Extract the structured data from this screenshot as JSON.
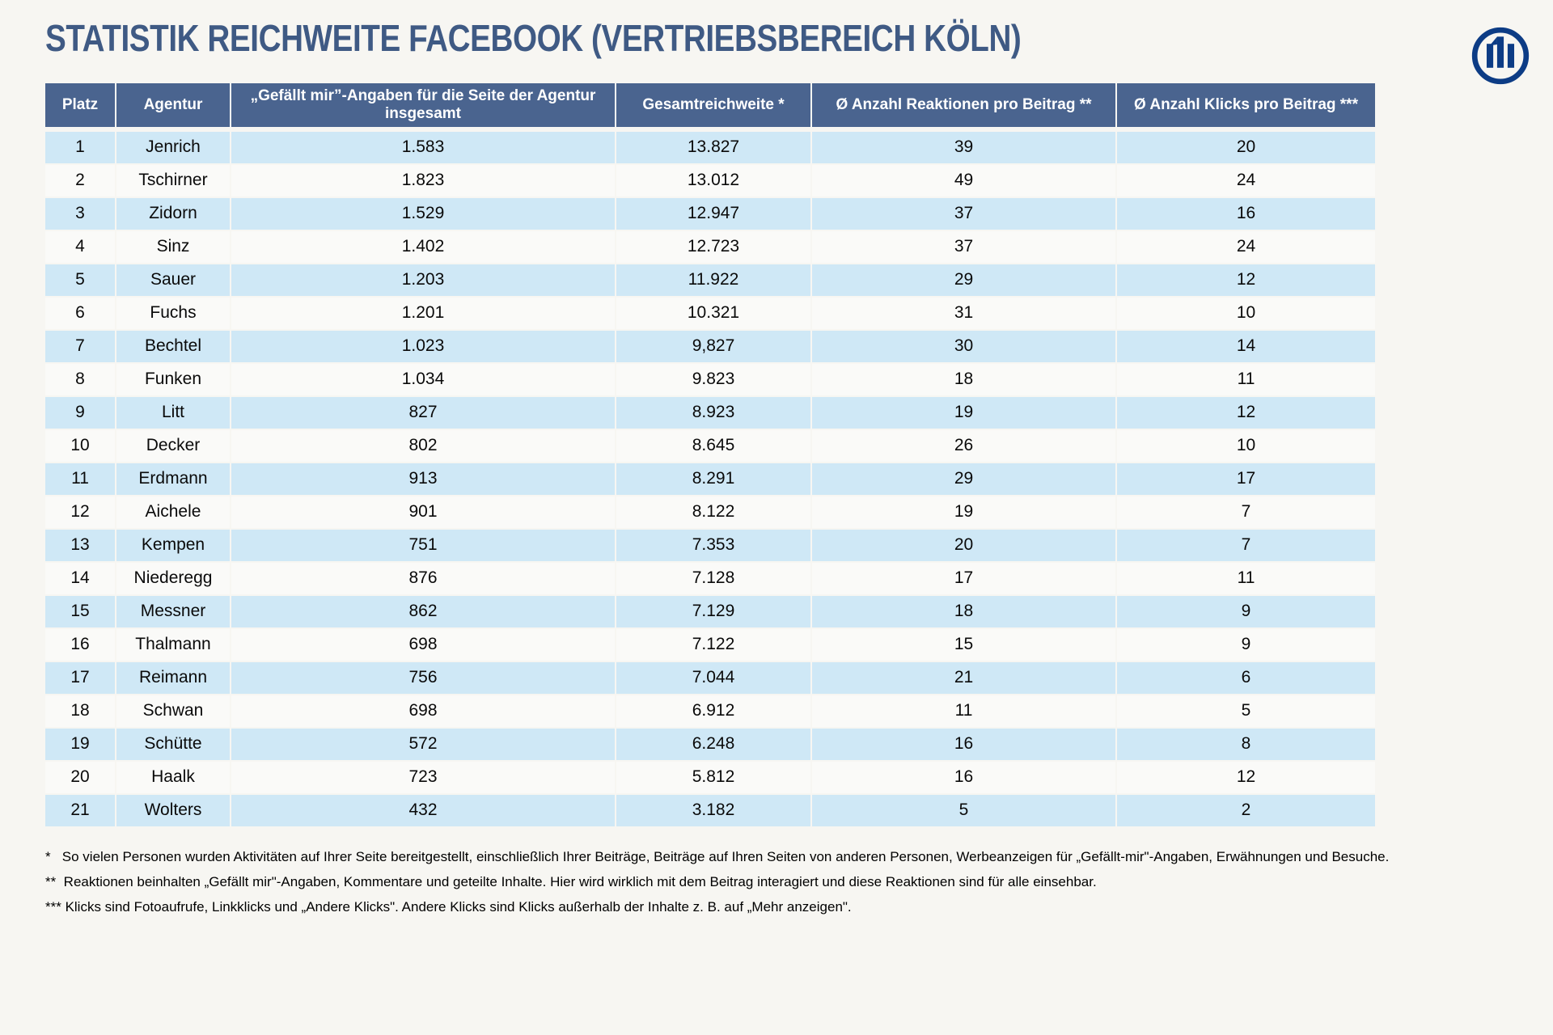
{
  "header": {
    "title": "STATISTIK REICHWEITE FACEBOOK (VERTRIEBSBEREICH KÖLN)",
    "logo": "Allianz"
  },
  "colors": {
    "page_bg": "#f7f6f2",
    "title": "#3f5a84",
    "header_bg": "#4a648f",
    "row_alt": "#cfe8f6",
    "row_base": "#fafaf8",
    "logo_blue": "#0d3c85"
  },
  "table": {
    "columns": [
      {
        "label": "Platz"
      },
      {
        "label": "Agentur"
      },
      {
        "label": "„Gefällt mir”-Angaben für die Seite der Agentur insgesamt"
      },
      {
        "label": "Gesamtreichweite *"
      },
      {
        "label": "Ø Anzahl Reaktionen pro Beitrag **"
      },
      {
        "label": "Ø Anzahl Klicks pro Beitrag ***"
      }
    ],
    "rows": [
      [
        "1",
        "Jenrich",
        "1.583",
        "13.827",
        "39",
        "20"
      ],
      [
        "2",
        "Tschirner",
        "1.823",
        "13.012",
        "49",
        "24"
      ],
      [
        "3",
        "Zidorn",
        "1.529",
        "12.947",
        "37",
        "16"
      ],
      [
        "4",
        "Sinz",
        "1.402",
        "12.723",
        "37",
        "24"
      ],
      [
        "5",
        "Sauer",
        "1.203",
        "11.922",
        "29",
        "12"
      ],
      [
        "6",
        "Fuchs",
        "1.201",
        "10.321",
        "31",
        "10"
      ],
      [
        "7",
        "Bechtel",
        "1.023",
        "9,827",
        "30",
        "14"
      ],
      [
        "8",
        "Funken",
        "1.034",
        "9.823",
        "18",
        "11"
      ],
      [
        "9",
        "Litt",
        "827",
        "8.923",
        "19",
        "12"
      ],
      [
        "10",
        "Decker",
        "802",
        "8.645",
        "26",
        "10"
      ],
      [
        "11",
        "Erdmann",
        "913",
        "8.291",
        "29",
        "17"
      ],
      [
        "12",
        "Aichele",
        "901",
        "8.122",
        "19",
        "7"
      ],
      [
        "13",
        "Kempen",
        "751",
        "7.353",
        "20",
        "7"
      ],
      [
        "14",
        "Niederegg",
        "876",
        "7.128",
        "17",
        "11"
      ],
      [
        "15",
        "Messner",
        "862",
        "7.129",
        "18",
        "9"
      ],
      [
        "16",
        "Thalmann",
        "698",
        "7.122",
        "15",
        "9"
      ],
      [
        "17",
        "Reimann",
        "756",
        "7.044",
        "21",
        "6"
      ],
      [
        "18",
        "Schwan",
        "698",
        "6.912",
        "11",
        "5"
      ],
      [
        "19",
        "Schütte",
        "572",
        "6.248",
        "16",
        "8"
      ],
      [
        "20",
        "Haalk",
        "723",
        "5.812",
        "16",
        "12"
      ],
      [
        "21",
        "Wolters",
        "432",
        "3.182",
        "5",
        "2"
      ]
    ]
  },
  "footnotes": [
    "*   So vielen Personen wurden Aktivitäten auf Ihrer Seite bereitgestellt, einschließlich Ihrer Beiträge, Beiträge auf Ihren Seiten von anderen Personen, Werbeanzeigen für „Gefällt-mir\"-Angaben, Erwähnungen und Besuche.",
    "**  Reaktionen beinhalten „Gefällt mir\"-Angaben, Kommentare und geteilte Inhalte. Hier wird wirklich mit dem Beitrag interagiert und diese Reaktionen sind für alle einsehbar.",
    "*** Klicks sind Fotoaufrufe, Linkklicks und „Andere Klicks\". Andere Klicks sind Klicks außerhalb der Inhalte z. B. auf „Mehr anzeigen\"."
  ]
}
